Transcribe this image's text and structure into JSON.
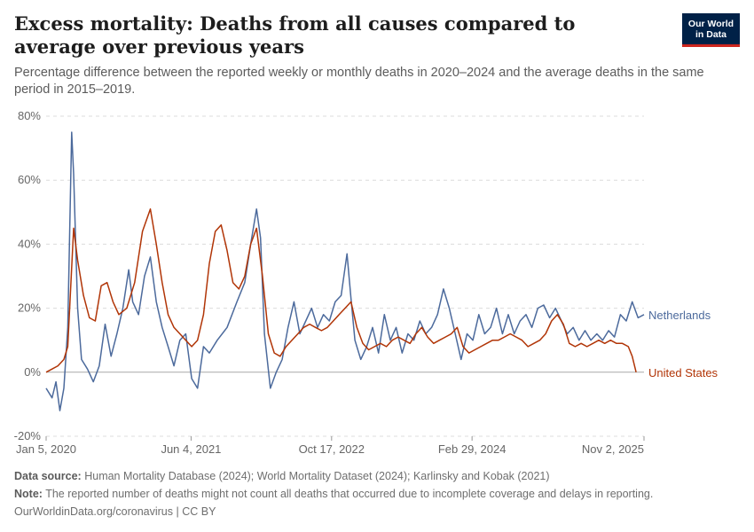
{
  "header": {
    "title": "Excess mortality: Deaths from all causes compared to average over previous years",
    "subtitle": "Percentage difference between the reported weekly or monthly deaths in 2020–2024 and the average deaths in the same period in 2015–2019.",
    "logo_line1": "Our World",
    "logo_line2": "in Data"
  },
  "footer": {
    "source_label": "Data source:",
    "source_text": "Human Mortality Database (2024); World Mortality Dataset (2024); Karlinsky and Kobak (2021)",
    "note_label": "Note:",
    "note_text": "The reported number of deaths might not count all deaths that occurred due to incomplete coverage and delays in reporting.",
    "credit": "OurWorldinData.org/coronavirus | CC BY"
  },
  "chart_data": {
    "type": "line",
    "x_type": "date",
    "ylim": [
      -20,
      80
    ],
    "y_ticks": [
      -20,
      0,
      20,
      40,
      60,
      80
    ],
    "y_tick_labels": [
      "-20%",
      "0%",
      "20%",
      "40%",
      "60%",
      "80%"
    ],
    "x_tick_dates": [
      "2020-01-05",
      "2021-06-04",
      "2022-10-17",
      "2024-02-29",
      "2025-11-02"
    ],
    "x_tick_labels": [
      "Jan 5, 2020",
      "Jun 4, 2021",
      "Oct 17, 2022",
      "Feb 29, 2024",
      "Nov 2, 2025"
    ],
    "xlim": [
      "2020-01-05",
      "2025-11-02"
    ],
    "grid": "horizontal dashed",
    "legend": "line-end labels",
    "series": [
      {
        "name": "Netherlands",
        "color": "#4c6a9c",
        "points": [
          [
            "2020-01-05",
            -5
          ],
          [
            "2020-01-26",
            -8
          ],
          [
            "2020-02-09",
            -3
          ],
          [
            "2020-02-23",
            -12
          ],
          [
            "2020-03-08",
            -5
          ],
          [
            "2020-03-22",
            14
          ],
          [
            "2020-04-05",
            75
          ],
          [
            "2020-04-12",
            62
          ],
          [
            "2020-04-26",
            20
          ],
          [
            "2020-05-10",
            4
          ],
          [
            "2020-05-31",
            1
          ],
          [
            "2020-06-21",
            -3
          ],
          [
            "2020-07-12",
            2
          ],
          [
            "2020-08-02",
            15
          ],
          [
            "2020-08-23",
            5
          ],
          [
            "2020-09-13",
            12
          ],
          [
            "2020-10-04",
            20
          ],
          [
            "2020-10-25",
            32
          ],
          [
            "2020-11-08",
            22
          ],
          [
            "2020-11-29",
            18
          ],
          [
            "2020-12-20",
            30
          ],
          [
            "2021-01-10",
            36
          ],
          [
            "2021-01-31",
            22
          ],
          [
            "2021-02-21",
            14
          ],
          [
            "2021-03-14",
            8
          ],
          [
            "2021-04-04",
            2
          ],
          [
            "2021-04-25",
            10
          ],
          [
            "2021-05-16",
            12
          ],
          [
            "2021-06-06",
            -2
          ],
          [
            "2021-06-27",
            -5
          ],
          [
            "2021-07-18",
            8
          ],
          [
            "2021-08-08",
            6
          ],
          [
            "2021-09-05",
            10
          ],
          [
            "2021-10-10",
            14
          ],
          [
            "2021-11-14",
            22
          ],
          [
            "2021-12-12",
            28
          ],
          [
            "2022-01-02",
            40
          ],
          [
            "2022-01-23",
            51
          ],
          [
            "2022-02-06",
            42
          ],
          [
            "2022-02-20",
            12
          ],
          [
            "2022-03-13",
            -5
          ],
          [
            "2022-04-03",
            0
          ],
          [
            "2022-04-24",
            4
          ],
          [
            "2022-05-15",
            14
          ],
          [
            "2022-06-05",
            22
          ],
          [
            "2022-06-26",
            12
          ],
          [
            "2022-07-17",
            16
          ],
          [
            "2022-08-07",
            20
          ],
          [
            "2022-08-28",
            14
          ],
          [
            "2022-09-18",
            18
          ],
          [
            "2022-10-09",
            16
          ],
          [
            "2022-10-30",
            22
          ],
          [
            "2022-11-20",
            24
          ],
          [
            "2022-12-11",
            37
          ],
          [
            "2022-12-25",
            23
          ],
          [
            "2023-01-08",
            10
          ],
          [
            "2023-01-29",
            4
          ],
          [
            "2023-02-19",
            8
          ],
          [
            "2023-03-12",
            14
          ],
          [
            "2023-04-02",
            6
          ],
          [
            "2023-04-23",
            18
          ],
          [
            "2023-05-14",
            10
          ],
          [
            "2023-06-04",
            14
          ],
          [
            "2023-06-25",
            6
          ],
          [
            "2023-07-16",
            12
          ],
          [
            "2023-08-06",
            10
          ],
          [
            "2023-08-27",
            16
          ],
          [
            "2023-09-17",
            12
          ],
          [
            "2023-10-08",
            14
          ],
          [
            "2023-10-29",
            18
          ],
          [
            "2023-11-19",
            26
          ],
          [
            "2023-12-10",
            20
          ],
          [
            "2023-12-31",
            12
          ],
          [
            "2024-01-21",
            4
          ],
          [
            "2024-02-11",
            12
          ],
          [
            "2024-03-03",
            10
          ],
          [
            "2024-03-24",
            18
          ],
          [
            "2024-04-14",
            12
          ],
          [
            "2024-05-05",
            14
          ],
          [
            "2024-05-26",
            20
          ],
          [
            "2024-06-16",
            12
          ],
          [
            "2024-07-07",
            18
          ],
          [
            "2024-07-28",
            12
          ],
          [
            "2024-08-18",
            16
          ],
          [
            "2024-09-08",
            18
          ],
          [
            "2024-09-29",
            14
          ],
          [
            "2024-10-20",
            20
          ],
          [
            "2024-11-10",
            21
          ],
          [
            "2024-12-01",
            17
          ],
          [
            "2024-12-22",
            20
          ],
          [
            "2025-01-12",
            16
          ],
          [
            "2025-02-02",
            12
          ],
          [
            "2025-02-23",
            14
          ],
          [
            "2025-03-16",
            10
          ],
          [
            "2025-04-06",
            13
          ],
          [
            "2025-04-27",
            10
          ],
          [
            "2025-05-18",
            12
          ],
          [
            "2025-06-08",
            10
          ],
          [
            "2025-06-29",
            13
          ],
          [
            "2025-07-20",
            11
          ],
          [
            "2025-08-10",
            18
          ],
          [
            "2025-08-31",
            16
          ],
          [
            "2025-09-21",
            22
          ],
          [
            "2025-10-12",
            17
          ],
          [
            "2025-11-02",
            18
          ]
        ]
      },
      {
        "name": "United States",
        "color": "#b13507",
        "points": [
          [
            "2020-01-05",
            0
          ],
          [
            "2020-01-26",
            1
          ],
          [
            "2020-02-16",
            2
          ],
          [
            "2020-03-08",
            4
          ],
          [
            "2020-03-22",
            8
          ],
          [
            "2020-04-12",
            45
          ],
          [
            "2020-04-26",
            35
          ],
          [
            "2020-05-17",
            24
          ],
          [
            "2020-06-07",
            17
          ],
          [
            "2020-06-28",
            16
          ],
          [
            "2020-07-19",
            27
          ],
          [
            "2020-08-09",
            28
          ],
          [
            "2020-08-30",
            22
          ],
          [
            "2020-09-20",
            18
          ],
          [
            "2020-10-18",
            20
          ],
          [
            "2020-11-15",
            28
          ],
          [
            "2020-12-13",
            44
          ],
          [
            "2021-01-10",
            51
          ],
          [
            "2021-01-31",
            40
          ],
          [
            "2021-02-21",
            28
          ],
          [
            "2021-03-14",
            18
          ],
          [
            "2021-04-04",
            14
          ],
          [
            "2021-04-25",
            12
          ],
          [
            "2021-05-16",
            10
          ],
          [
            "2021-06-06",
            8
          ],
          [
            "2021-06-27",
            10
          ],
          [
            "2021-07-18",
            18
          ],
          [
            "2021-08-08",
            34
          ],
          [
            "2021-08-29",
            44
          ],
          [
            "2021-09-19",
            46
          ],
          [
            "2021-10-10",
            38
          ],
          [
            "2021-10-31",
            28
          ],
          [
            "2021-11-21",
            26
          ],
          [
            "2021-12-12",
            30
          ],
          [
            "2022-01-02",
            40
          ],
          [
            "2022-01-23",
            45
          ],
          [
            "2022-02-13",
            30
          ],
          [
            "2022-03-06",
            12
          ],
          [
            "2022-03-27",
            6
          ],
          [
            "2022-04-17",
            5
          ],
          [
            "2022-05-08",
            8
          ],
          [
            "2022-05-29",
            10
          ],
          [
            "2022-06-19",
            12
          ],
          [
            "2022-07-10",
            14
          ],
          [
            "2022-07-31",
            15
          ],
          [
            "2022-08-21",
            14
          ],
          [
            "2022-09-11",
            13
          ],
          [
            "2022-10-02",
            14
          ],
          [
            "2022-10-23",
            16
          ],
          [
            "2022-11-13",
            18
          ],
          [
            "2022-12-04",
            20
          ],
          [
            "2022-12-25",
            22
          ],
          [
            "2023-01-15",
            14
          ],
          [
            "2023-02-05",
            9
          ],
          [
            "2023-02-26",
            7
          ],
          [
            "2023-03-19",
            8
          ],
          [
            "2023-04-09",
            9
          ],
          [
            "2023-04-30",
            8
          ],
          [
            "2023-05-21",
            10
          ],
          [
            "2023-06-11",
            11
          ],
          [
            "2023-07-02",
            10
          ],
          [
            "2023-07-23",
            9
          ],
          [
            "2023-08-13",
            12
          ],
          [
            "2023-09-03",
            14
          ],
          [
            "2023-09-24",
            11
          ],
          [
            "2023-10-15",
            9
          ],
          [
            "2023-11-05",
            10
          ],
          [
            "2023-11-26",
            11
          ],
          [
            "2023-12-17",
            12
          ],
          [
            "2024-01-07",
            14
          ],
          [
            "2024-01-28",
            8
          ],
          [
            "2024-02-18",
            6
          ],
          [
            "2024-03-10",
            7
          ],
          [
            "2024-03-31",
            8
          ],
          [
            "2024-04-21",
            9
          ],
          [
            "2024-05-12",
            10
          ],
          [
            "2024-06-02",
            10
          ],
          [
            "2024-06-23",
            11
          ],
          [
            "2024-07-14",
            12
          ],
          [
            "2024-08-04",
            11
          ],
          [
            "2024-08-25",
            10
          ],
          [
            "2024-09-15",
            8
          ],
          [
            "2024-10-06",
            9
          ],
          [
            "2024-10-27",
            10
          ],
          [
            "2024-11-17",
            12
          ],
          [
            "2024-12-08",
            16
          ],
          [
            "2024-12-29",
            18
          ],
          [
            "2025-01-19",
            15
          ],
          [
            "2025-02-09",
            9
          ],
          [
            "2025-03-02",
            8
          ],
          [
            "2025-03-23",
            9
          ],
          [
            "2025-04-13",
            8
          ],
          [
            "2025-05-04",
            9
          ],
          [
            "2025-05-25",
            10
          ],
          [
            "2025-06-15",
            9
          ],
          [
            "2025-07-06",
            10
          ],
          [
            "2025-07-27",
            9
          ],
          [
            "2025-08-17",
            9
          ],
          [
            "2025-09-07",
            8
          ],
          [
            "2025-09-21",
            5
          ],
          [
            "2025-10-05",
            0
          ]
        ]
      }
    ]
  }
}
